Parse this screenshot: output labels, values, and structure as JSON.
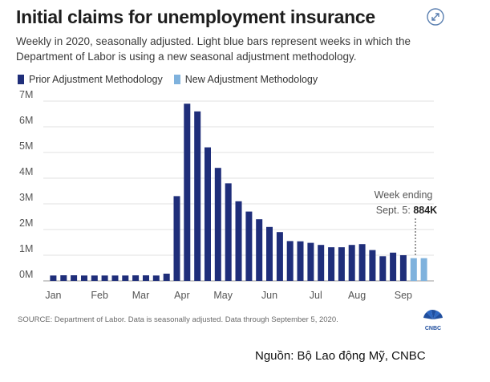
{
  "header": {
    "title": "Initial claims for unemployment insurance",
    "subtitle": "Weekly in 2020, seasonally adjusted. Light blue bars represent weeks in which the Department of Labor is using a new seasonal adjustment methodology."
  },
  "legend": {
    "prior": "Prior Adjustment Methodology",
    "new": "New Adjustment Methodology"
  },
  "colors": {
    "prior": "#1f2e7a",
    "new": "#7fb2dd"
  },
  "annotation": {
    "line1": "Week ending",
    "line2_prefix": "Sept. 5: ",
    "line2_value": "884K"
  },
  "source": "SOURCE: Department of Labor. Data is seasonally adjusted. Data through September 5, 2020.",
  "credit": "Nguồn: Bộ Lao động Mỹ,  CNBC",
  "logo_label": "CNBC",
  "chart_data": {
    "type": "bar",
    "title": "Initial claims for unemployment insurance",
    "xlabel": "",
    "ylabel": "",
    "ylim": [
      0,
      7000000
    ],
    "yticks": [
      0,
      1000000,
      2000000,
      3000000,
      4000000,
      5000000,
      6000000,
      7000000
    ],
    "ytick_labels": [
      "0M",
      "1M",
      "2M",
      "3M",
      "4M",
      "5M",
      "6M",
      "7M"
    ],
    "month_labels": [
      "Jan",
      "Feb",
      "Mar",
      "Apr",
      "May",
      "Jun",
      "Jul",
      "Aug",
      "Sep"
    ],
    "month_label_positions": [
      0,
      4.5,
      8.5,
      12.5,
      16.5,
      21,
      25.5,
      29.5,
      34
    ],
    "grid": true,
    "legend_position": "top-left",
    "series": [
      {
        "name": "Prior Adjustment Methodology",
        "values": [
          210000,
          220000,
          220000,
          210000,
          210000,
          210000,
          210000,
          210000,
          215000,
          215000,
          210000,
          280000,
          3300000,
          6900000,
          6600000,
          5200000,
          4400000,
          3800000,
          3100000,
          2700000,
          2400000,
          2100000,
          1900000,
          1550000,
          1540000,
          1480000,
          1400000,
          1310000,
          1310000,
          1400000,
          1430000,
          1200000,
          960000,
          1100000,
          1000000,
          null,
          null
        ],
        "color": "#1f2e7a"
      },
      {
        "name": "New Adjustment Methodology",
        "values": [
          null,
          null,
          null,
          null,
          null,
          null,
          null,
          null,
          null,
          null,
          null,
          null,
          null,
          null,
          null,
          null,
          null,
          null,
          null,
          null,
          null,
          null,
          null,
          null,
          null,
          null,
          null,
          null,
          null,
          null,
          null,
          null,
          null,
          null,
          null,
          884000,
          884000
        ],
        "color": "#7fb2dd"
      }
    ]
  }
}
